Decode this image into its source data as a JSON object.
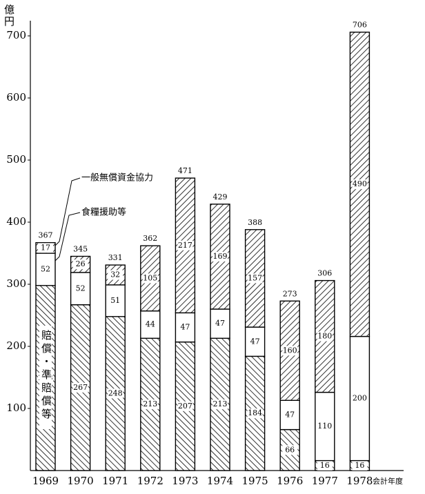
{
  "chart_data": {
    "type": "stacked-bar",
    "unit_label": "億円",
    "x_label": "会計年度",
    "categories": [
      "1969",
      "1970",
      "1971",
      "1972",
      "1973",
      "1974",
      "1975",
      "1976",
      "1977",
      "1978"
    ],
    "series": [
      {
        "name": "賠償・準賠償等",
        "color": "#000000",
        "hatch": "backslash",
        "values": [
          298,
          267,
          248,
          213,
          207,
          213,
          184,
          66,
          16,
          16
        ]
      },
      {
        "name": "食糧援助等",
        "color": "#000000",
        "hatch": "none",
        "values": [
          52,
          52,
          51,
          44,
          47,
          47,
          47,
          47,
          110,
          200
        ]
      },
      {
        "name": "一般無償資金協力",
        "color": "#000000",
        "hatch": "slash",
        "values": [
          17,
          26,
          32,
          105,
          217,
          169,
          157,
          160,
          180,
          490
        ]
      }
    ],
    "totals": [
      367,
      345,
      331,
      362,
      471,
      429,
      388,
      273,
      306,
      706
    ],
    "ylim": [
      0,
      720
    ],
    "yticks": [
      100,
      200,
      300,
      400,
      500,
      600,
      700
    ]
  }
}
